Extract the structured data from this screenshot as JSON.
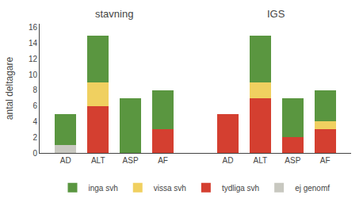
{
  "chart_data": {
    "type": "bar",
    "categories": [
      "AD",
      "ALT",
      "ASP",
      "AF",
      "AD",
      "ALT",
      "ASP",
      "AF"
    ],
    "series": [
      {
        "name": "ej genomf",
        "color": "#c8c8c0",
        "values": [
          1,
          0,
          0,
          0,
          0,
          0,
          0,
          0
        ]
      },
      {
        "name": "tydliga svh",
        "color": "#d43f30",
        "values": [
          0,
          6,
          0,
          3,
          5,
          7,
          2,
          3
        ]
      },
      {
        "name": "vissa svh",
        "color": "#f0d060",
        "values": [
          0,
          3,
          0,
          0,
          0,
          2,
          0,
          1
        ]
      },
      {
        "name": "inga svh",
        "color": "#5a9640",
        "values": [
          4,
          6,
          7,
          5,
          0,
          6,
          5,
          4
        ]
      }
    ],
    "ylabel": "antal deltagare",
    "annotations": [
      {
        "text": "stavning"
      },
      {
        "text": "IGS"
      }
    ],
    "ylim": [
      0,
      16.5
    ],
    "yticks": [
      0,
      2,
      4,
      6,
      8,
      10,
      12,
      14,
      16
    ],
    "stacked": true,
    "legend": "bottom",
    "grid": false
  }
}
